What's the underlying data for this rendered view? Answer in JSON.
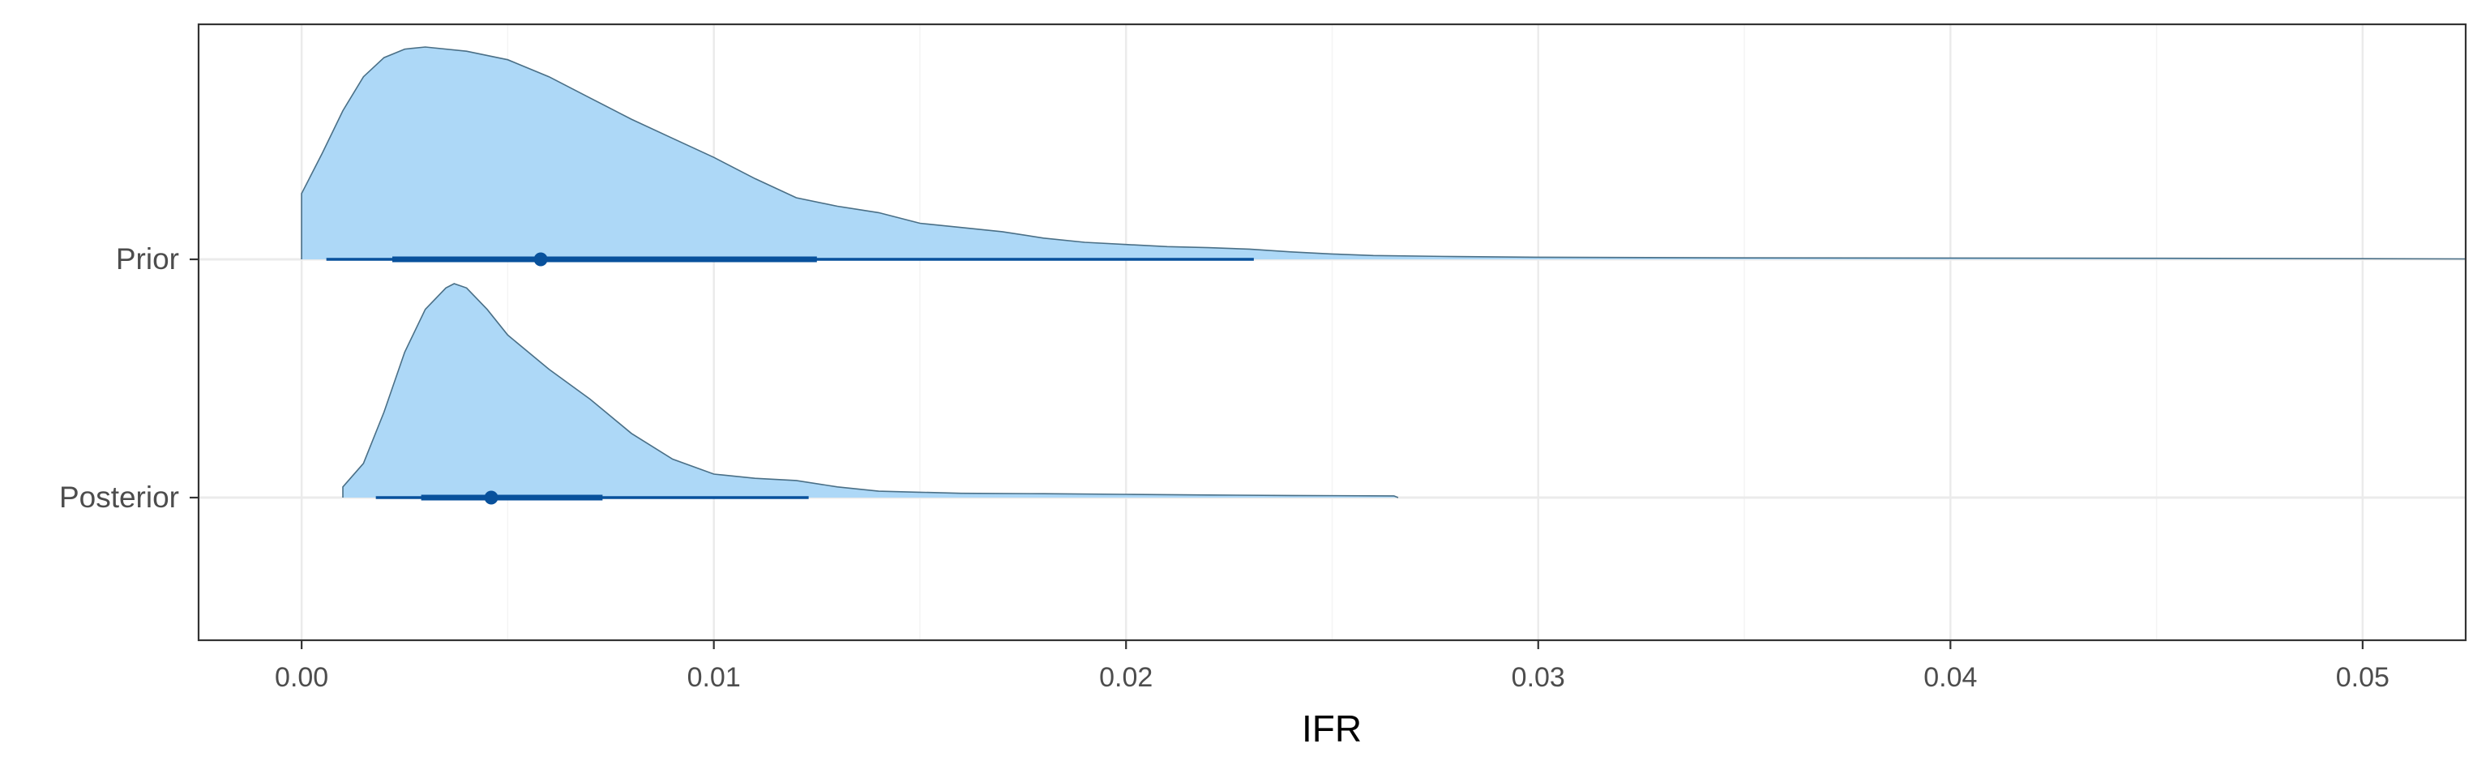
{
  "chart_data": {
    "type": "area",
    "subtype": "halfeye-density-with-interval",
    "xlabel": "IFR",
    "ylabel": "",
    "title": "",
    "xlim": [
      -0.0025,
      0.0525
    ],
    "x_ticks": [
      "0.00",
      "0.01",
      "0.02",
      "0.03",
      "0.04",
      "0.05"
    ],
    "x_tick_values": [
      0.0,
      0.01,
      0.02,
      0.03,
      0.04,
      0.05
    ],
    "y_categories": [
      "Prior",
      "Posterior"
    ],
    "grid": true,
    "legend": "none",
    "colors": {
      "density_fill": "#add8f7",
      "density_outline": "#4a6f86",
      "interval": "#08519c",
      "grid_major": "#ebebeb",
      "grid_minor": "#f4f4f4",
      "panel_border": "#333333"
    },
    "series": [
      {
        "name": "Prior",
        "point": 0.0058,
        "interval_66": [
          0.0022,
          0.0125
        ],
        "interval_95": [
          0.0006,
          0.0231
        ],
        "density_x": [
          0.0,
          0.0005,
          0.001,
          0.0015,
          0.002,
          0.0025,
          0.003,
          0.004,
          0.005,
          0.006,
          0.007,
          0.008,
          0.009,
          0.01,
          0.011,
          0.012,
          0.013,
          0.014,
          0.015,
          0.016,
          0.017,
          0.018,
          0.019,
          0.02,
          0.021,
          0.022,
          0.023,
          0.024,
          0.025,
          0.026,
          0.028,
          0.03,
          0.035,
          0.04,
          0.045,
          0.05,
          0.0525
        ],
        "density_y": [
          0.31,
          0.5,
          0.7,
          0.86,
          0.95,
          0.99,
          1.0,
          0.98,
          0.94,
          0.86,
          0.76,
          0.66,
          0.57,
          0.48,
          0.38,
          0.29,
          0.25,
          0.22,
          0.17,
          0.15,
          0.13,
          0.1,
          0.08,
          0.07,
          0.06,
          0.055,
          0.048,
          0.035,
          0.025,
          0.018,
          0.013,
          0.01,
          0.007,
          0.006,
          0.005,
          0.003,
          0.002
        ]
      },
      {
        "name": "Posterior",
        "point": 0.0046,
        "interval_66": [
          0.0029,
          0.0073
        ],
        "interval_95": [
          0.0018,
          0.0123
        ],
        "density_x": [
          0.001,
          0.0015,
          0.002,
          0.0025,
          0.003,
          0.0035,
          0.0037,
          0.004,
          0.0045,
          0.005,
          0.006,
          0.007,
          0.008,
          0.009,
          0.01,
          0.011,
          0.012,
          0.013,
          0.014,
          0.015,
          0.016,
          0.018,
          0.02,
          0.022,
          0.024,
          0.0265,
          0.0266
        ],
        "density_y": [
          0.05,
          0.16,
          0.4,
          0.68,
          0.88,
          0.98,
          1.0,
          0.98,
          0.88,
          0.76,
          0.6,
          0.46,
          0.3,
          0.18,
          0.11,
          0.09,
          0.08,
          0.05,
          0.03,
          0.025,
          0.02,
          0.018,
          0.015,
          0.012,
          0.01,
          0.008,
          0.0
        ]
      }
    ]
  }
}
